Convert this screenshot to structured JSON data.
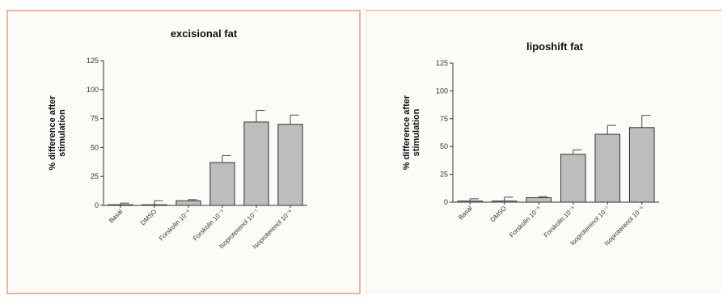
{
  "chart_data": [
    {
      "type": "bar",
      "title": "excisional fat",
      "ylabel": "% difference after stimulation",
      "xlabel": "",
      "ylim": [
        0,
        125
      ],
      "yticks": [
        0,
        25,
        50,
        75,
        100,
        125
      ],
      "categories": [
        "Basal",
        "DMSO",
        "Forskolin 10⁻⁶",
        "Forskolin 10⁻⁵",
        "Isoproterenol 10⁻⁷",
        "Isoproterenol 10⁻⁶"
      ],
      "values": [
        0.5,
        0.5,
        4,
        37,
        72,
        70
      ],
      "errors": [
        1.5,
        3.5,
        1,
        6,
        10,
        8
      ]
    },
    {
      "type": "bar",
      "title": "liposhift fat",
      "ylabel": "% difference after stimulation",
      "xlabel": "",
      "ylim": [
        0,
        125
      ],
      "yticks": [
        0,
        25,
        50,
        75,
        100,
        125
      ],
      "categories": [
        "Basal",
        "DMSO",
        "Forskolin 10⁻⁶",
        "Forskolin 10⁻⁵",
        "Isoproterenol 10⁻⁷",
        "Isoproterenol 10⁻⁶"
      ],
      "values": [
        1,
        1,
        4,
        43,
        61,
        67
      ],
      "errors": [
        2,
        3.5,
        1,
        4,
        8,
        11
      ]
    }
  ]
}
